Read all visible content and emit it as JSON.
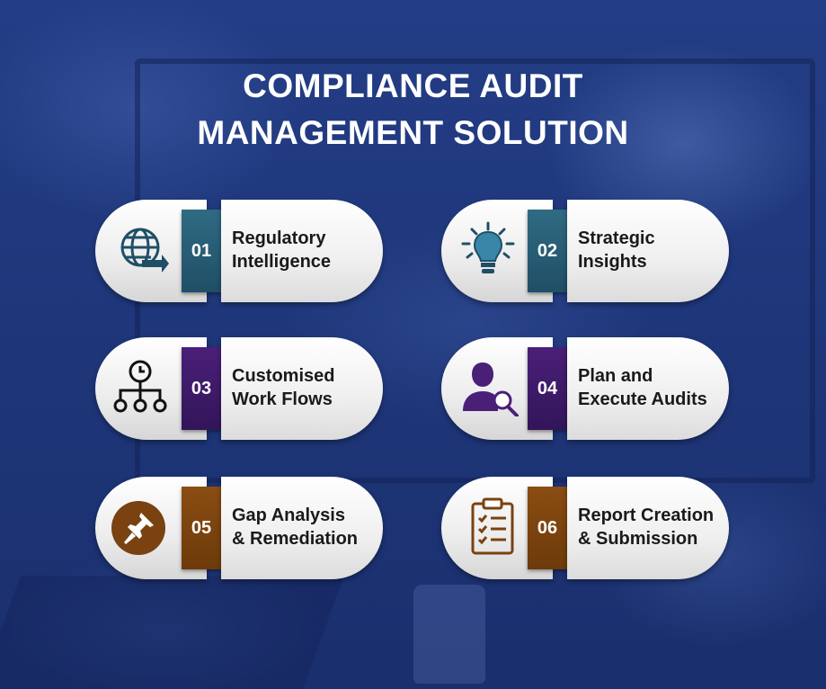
{
  "title": {
    "line1": "COMPLIANCE AUDIT",
    "line2": "MANAGEMENT SOLUTION"
  },
  "items": [
    {
      "number": "01",
      "line1": "Regulatory",
      "line2": "Intelligence",
      "icon": "globe-arrow-icon",
      "color": "#2f6b84"
    },
    {
      "number": "02",
      "line1": "Strategic",
      "line2": "Insights",
      "icon": "lightbulb-icon",
      "color": "#2f6b84"
    },
    {
      "number": "03",
      "line1": "Customised",
      "line2": "Work Flows",
      "icon": "workflow-clock-icon",
      "color": "#4a1f78"
    },
    {
      "number": "04",
      "line1": "Plan and",
      "line2": "Execute Audits",
      "icon": "user-search-icon",
      "color": "#4a1f78"
    },
    {
      "number": "05",
      "line1": "Gap Analysis",
      "line2": "& Remediation",
      "icon": "pushpin-icon",
      "color": "#8a4d12"
    },
    {
      "number": "06",
      "line1": "Report Creation",
      "line2": "& Submission",
      "icon": "clipboard-checklist-icon",
      "color": "#8a4d12"
    }
  ]
}
